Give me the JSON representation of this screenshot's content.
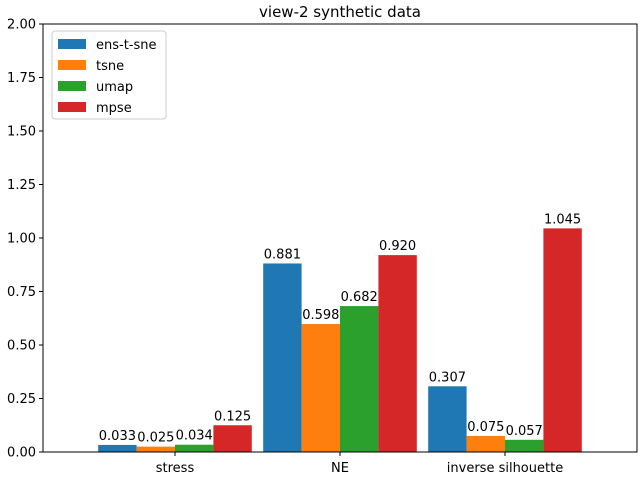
{
  "chart_data": {
    "type": "bar",
    "title": "view-2 synthetic data",
    "xlabel": "",
    "ylabel": "",
    "categories": [
      "stress",
      "NE",
      "inverse silhouette"
    ],
    "series": [
      {
        "name": "ens-t-sne",
        "color": "#1f77b4",
        "values": [
          0.033,
          0.881,
          0.307
        ],
        "labels": [
          "0.033",
          "0.881",
          "0.307"
        ]
      },
      {
        "name": "tsne",
        "color": "#ff7f0e",
        "values": [
          0.025,
          0.598,
          0.075
        ],
        "labels": [
          "0.025",
          "0.598",
          "0.075"
        ]
      },
      {
        "name": "umap",
        "color": "#2ca02c",
        "values": [
          0.034,
          0.682,
          0.057
        ],
        "labels": [
          "0.034",
          "0.682",
          "0.057"
        ]
      },
      {
        "name": "mpse",
        "color": "#d62728",
        "values": [
          0.125,
          0.92,
          1.045
        ],
        "labels": [
          "0.125",
          "0.920",
          "1.045"
        ]
      }
    ],
    "ylim": [
      0,
      2.0
    ],
    "yticks": [
      "0.00",
      "0.25",
      "0.50",
      "0.75",
      "1.00",
      "1.25",
      "1.50",
      "1.75",
      "2.00"
    ],
    "grid": false,
    "legend_position": "top-left"
  }
}
